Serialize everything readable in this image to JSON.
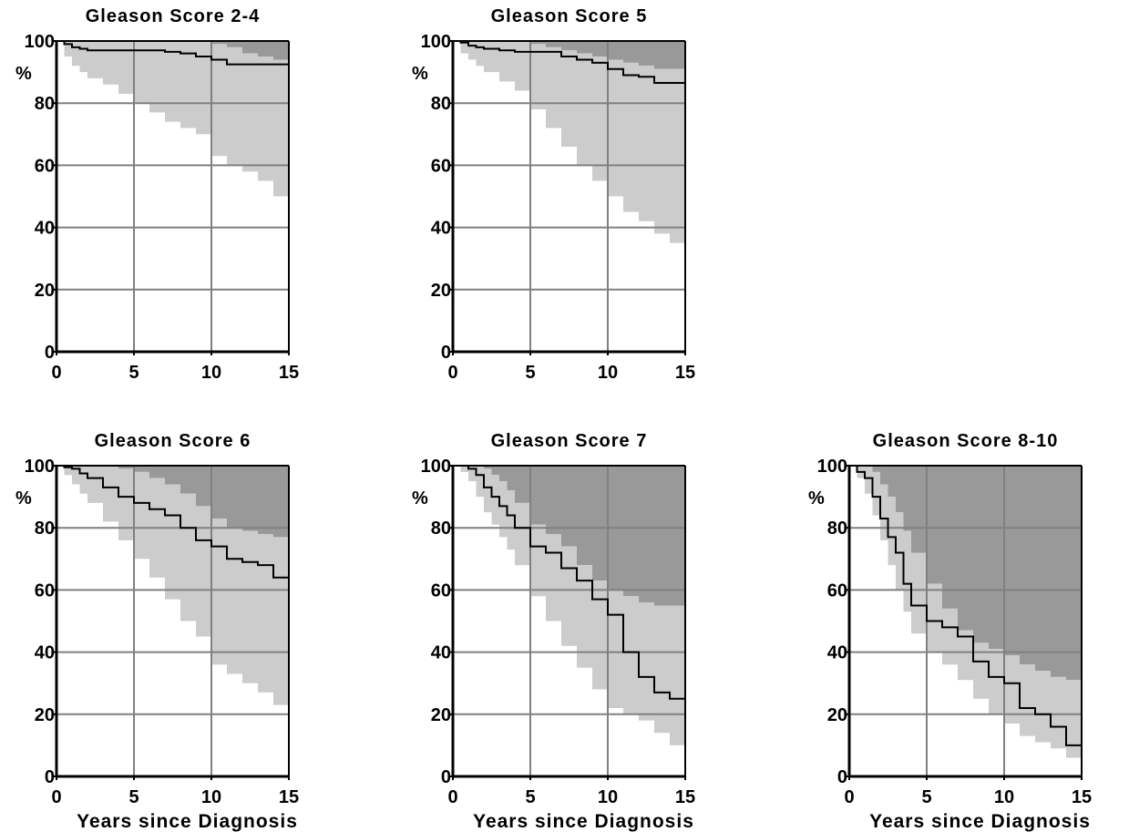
{
  "colors": {
    "dark_band": "#999999",
    "light_band": "#cccccc",
    "grid": "#808080",
    "curve": "#000000",
    "axis": "#000000"
  },
  "y_ticks": [
    "0",
    "20",
    "40",
    "60",
    "80",
    "100"
  ],
  "y_unit": "%",
  "x_ticks": [
    "0",
    "5",
    "10",
    "15"
  ],
  "chart_data": [
    {
      "type": "area",
      "title": "Gleason Score 2-4",
      "xlabel": "",
      "ylabel": "%",
      "xlim": [
        0,
        15
      ],
      "ylim": [
        0,
        100
      ],
      "grid": true,
      "series": [
        {
          "values_x": [
            0,
            0.5,
            1,
            1.5,
            2,
            3,
            4,
            5,
            6,
            7,
            8,
            9,
            10,
            11,
            12,
            13,
            14,
            15
          ],
          "values": [
            100,
            99,
            98,
            97.5,
            97,
            97,
            97,
            97,
            97,
            96.5,
            96,
            95,
            94,
            92.5,
            92.5,
            92.5,
            92.5,
            92
          ],
          "lower": [
            100,
            95,
            92,
            90,
            88,
            86,
            83,
            80,
            77,
            74,
            72,
            70,
            63,
            60,
            58,
            55,
            50,
            45
          ],
          "upper": [
            100,
            100,
            100,
            100,
            100,
            100,
            100,
            100,
            100,
            100,
            100,
            100,
            99,
            98,
            96,
            95,
            94,
            94
          ]
        }
      ]
    },
    {
      "type": "area",
      "title": "Gleason Score 5",
      "xlabel": "",
      "ylabel": "%",
      "xlim": [
        0,
        15
      ],
      "ylim": [
        0,
        100
      ],
      "grid": true,
      "series": [
        {
          "values_x": [
            0,
            0.5,
            1,
            1.5,
            2,
            3,
            4,
            5,
            6,
            7,
            8,
            9,
            10,
            11,
            12,
            13,
            14,
            15
          ],
          "values": [
            100,
            99.5,
            98.5,
            98,
            97.5,
            97,
            96.5,
            96.5,
            96.5,
            95,
            94,
            93,
            91,
            89,
            88.5,
            86.5,
            86.5,
            86.5
          ],
          "lower": [
            100,
            96,
            94,
            92,
            90,
            87,
            84,
            78,
            72,
            66,
            60,
            55,
            50,
            45,
            42,
            38,
            35,
            33
          ],
          "upper": [
            100,
            100,
            100,
            100,
            100,
            100,
            100,
            99,
            98,
            97,
            96,
            95,
            94,
            93,
            92,
            91,
            91,
            91
          ]
        }
      ]
    },
    {
      "type": "area",
      "title": "Gleason Score 6",
      "xlabel": "Years since Diagnosis",
      "ylabel": "%",
      "xlim": [
        0,
        15
      ],
      "ylim": [
        0,
        100
      ],
      "grid": true,
      "series": [
        {
          "values_x": [
            0,
            0.5,
            1,
            1.5,
            2,
            3,
            4,
            5,
            6,
            7,
            8,
            9,
            10,
            11,
            12,
            13,
            14,
            15
          ],
          "values": [
            100,
            99.5,
            99,
            97.5,
            96,
            93,
            90,
            88,
            86,
            84,
            80,
            76,
            74,
            70,
            69,
            68,
            64,
            56
          ],
          "lower": [
            100,
            97,
            94,
            91,
            88,
            82,
            76,
            70,
            64,
            57,
            50,
            45,
            36,
            33,
            30,
            27,
            23,
            20
          ],
          "upper": [
            100,
            100,
            100,
            100,
            100,
            100,
            99,
            98,
            96,
            94,
            91,
            87,
            83,
            80,
            79,
            78,
            77,
            75
          ]
        }
      ]
    },
    {
      "type": "area",
      "title": "Gleason Score 7",
      "xlabel": "Years since Diagnosis",
      "ylabel": "%",
      "xlim": [
        0,
        15
      ],
      "ylim": [
        0,
        100
      ],
      "grid": true,
      "series": [
        {
          "values_x": [
            0,
            0.5,
            1,
            1.5,
            2,
            2.5,
            3,
            3.5,
            4,
            5,
            6,
            7,
            8,
            9,
            10,
            11,
            12,
            13,
            14,
            15
          ],
          "values": [
            100,
            100,
            99,
            97,
            93,
            90,
            87,
            84,
            80,
            74,
            72,
            67,
            63,
            57,
            52,
            40,
            32,
            27,
            25,
            24
          ],
          "lower": [
            100,
            98,
            95,
            90,
            85,
            81,
            77,
            73,
            68,
            58,
            50,
            42,
            35,
            28,
            22,
            20,
            18,
            14,
            10,
            9
          ],
          "upper": [
            100,
            100,
            100,
            100,
            99,
            97,
            95,
            92,
            88,
            81,
            78,
            74,
            68,
            63,
            60,
            58,
            56,
            55,
            55,
            55
          ]
        }
      ]
    },
    {
      "type": "area",
      "title": "Gleason Score 8-10",
      "xlabel": "Years since Diagnosis",
      "ylabel": "%",
      "xlim": [
        0,
        15
      ],
      "ylim": [
        0,
        100
      ],
      "grid": true,
      "series": [
        {
          "values_x": [
            0,
            0.5,
            1,
            1.5,
            2,
            2.5,
            3,
            3.5,
            4,
            5,
            6,
            7,
            8,
            9,
            10,
            11,
            12,
            13,
            14,
            15
          ],
          "values": [
            100,
            98,
            96,
            90,
            83,
            77,
            72,
            62,
            55,
            50,
            48,
            45,
            37,
            32,
            30,
            22,
            20,
            16,
            10,
            7
          ],
          "lower": [
            100,
            96,
            91,
            84,
            76,
            68,
            60,
            53,
            46,
            40,
            36,
            31,
            25,
            20,
            17,
            13,
            11,
            9,
            6,
            5
          ],
          "upper": [
            100,
            100,
            100,
            98,
            94,
            90,
            85,
            79,
            72,
            62,
            54,
            47,
            43,
            41,
            39,
            36,
            34,
            32,
            31,
            31
          ]
        }
      ]
    }
  ]
}
